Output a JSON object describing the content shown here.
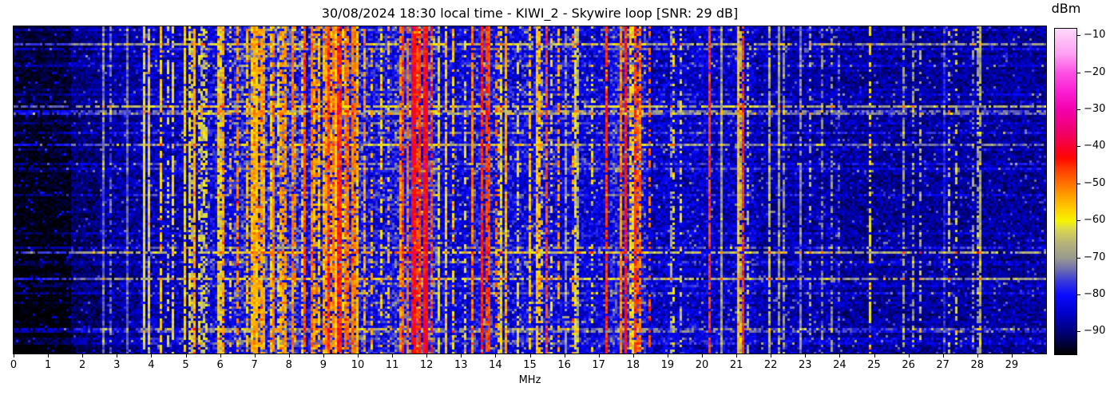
{
  "title": "30/08/2024 18:30 local time - KIWI_2 - Skywire loop [SNR: 29 dB]",
  "header": {
    "date": "30/08/2024",
    "time": "18:30 local time",
    "receiver": "KIWI_2",
    "antenna": "Skywire loop",
    "snr_db": 29
  },
  "chart_data": {
    "type": "heatmap",
    "subtype": "radio-spectrum-waterfall",
    "title": "30/08/2024 18:30 local time - KIWI_2 - Skywire loop [SNR: 29 dB]",
    "xlabel": "MHz",
    "x_range": [
      0,
      30
    ],
    "x_ticks": [
      0,
      1,
      2,
      3,
      4,
      5,
      6,
      7,
      8,
      9,
      10,
      11,
      12,
      13,
      14,
      15,
      16,
      17,
      18,
      19,
      20,
      21,
      22,
      23,
      24,
      25,
      26,
      27,
      28,
      29
    ],
    "grid": false,
    "legend_position": "none",
    "colorbar": {
      "label": "dBm",
      "ticks": [
        -10,
        -20,
        -30,
        -40,
        -50,
        -60,
        -70,
        -80,
        -90
      ],
      "vmin": -96,
      "vmax": -8
    },
    "colormap_stops": [
      [
        -96,
        "#000000"
      ],
      [
        -90,
        "#000078"
      ],
      [
        -85,
        "#0000c8"
      ],
      [
        -80,
        "#0a0aff"
      ],
      [
        -76,
        "#3c3cd8"
      ],
      [
        -73,
        "#6e6eae"
      ],
      [
        -70,
        "#99998f"
      ],
      [
        -66,
        "#b5b379"
      ],
      [
        -62,
        "#dcd94e"
      ],
      [
        -60,
        "#f5f500"
      ],
      [
        -57,
        "#ffd000"
      ],
      [
        -53,
        "#ff9e00"
      ],
      [
        -50,
        "#ff7400"
      ],
      [
        -46,
        "#ff3c00"
      ],
      [
        -43,
        "#ff0700"
      ],
      [
        -40,
        "#f8002e"
      ],
      [
        -36,
        "#f00069"
      ],
      [
        -30,
        "#f300ab"
      ],
      [
        -25,
        "#fb1fd4"
      ],
      [
        -20,
        "#fd4fe3"
      ],
      [
        -15,
        "#ff9ef2"
      ],
      [
        -10,
        "#ffc8f8"
      ],
      [
        -8,
        "#ffd9fa"
      ]
    ],
    "bands_format": [
      "from_mhz",
      "to_mhz",
      "noise_floor_dbm",
      "noise_spread_db",
      "channel_density",
      "channel_level_lo_dbm",
      "channel_level_hi_dbm"
    ],
    "signal_bands": [
      [
        0.0,
        1.7,
        -93,
        2.5,
        0.02,
        -80,
        -72
      ],
      [
        1.7,
        2.5,
        -89,
        4,
        0.05,
        -76,
        -66
      ],
      [
        2.5,
        3.7,
        -87,
        5,
        0.1,
        -73,
        -62
      ],
      [
        3.7,
        5.6,
        -85,
        6,
        0.2,
        -68,
        -56
      ],
      [
        5.6,
        6.4,
        -82,
        7,
        0.3,
        -66,
        -52
      ],
      [
        6.4,
        8.4,
        -79,
        8,
        0.45,
        -64,
        -50
      ],
      [
        8.4,
        9.0,
        -82,
        7,
        0.28,
        -62,
        -48
      ],
      [
        9.0,
        10.2,
        -80,
        8,
        0.5,
        -60,
        -46
      ],
      [
        10.2,
        11.1,
        -81,
        7,
        0.3,
        -64,
        -52
      ],
      [
        11.1,
        12.3,
        -79,
        8,
        0.5,
        -58,
        -44
      ],
      [
        12.3,
        13.3,
        -83,
        6,
        0.18,
        -66,
        -55
      ],
      [
        13.3,
        14.1,
        -81,
        7,
        0.28,
        -62,
        -50
      ],
      [
        14.1,
        15.9,
        -82,
        7,
        0.24,
        -66,
        -53
      ],
      [
        15.9,
        17.3,
        -83,
        6,
        0.22,
        -68,
        -54
      ],
      [
        17.3,
        18.4,
        -80,
        7,
        0.35,
        -62,
        -47
      ],
      [
        18.4,
        19.6,
        -85,
        6,
        0.1,
        -70,
        -58
      ],
      [
        19.6,
        21.6,
        -85,
        6,
        0.1,
        -70,
        -57
      ],
      [
        21.6,
        24.0,
        -87,
        5,
        0.06,
        -74,
        -62
      ],
      [
        24.0,
        30.0,
        -88,
        4.5,
        0.05,
        -76,
        -64
      ]
    ],
    "lines_format": [
      "freq_mhz",
      "half_width_mhz",
      "level_dbm",
      "duty_cycle"
    ],
    "signal_lines": [
      [
        2.62,
        0.02,
        -73,
        1.0
      ],
      [
        3.33,
        0.02,
        -74,
        1.0
      ],
      [
        3.8,
        0.03,
        -60,
        0.7
      ],
      [
        3.92,
        0.03,
        -58,
        0.55
      ],
      [
        4.25,
        0.03,
        -57,
        0.75
      ],
      [
        4.48,
        0.02,
        -62,
        0.4
      ],
      [
        4.65,
        0.03,
        -59,
        0.55
      ],
      [
        5.28,
        0.04,
        -55,
        0.85
      ],
      [
        5.42,
        0.02,
        -61,
        0.5
      ],
      [
        5.95,
        0.03,
        -57,
        0.6
      ],
      [
        6.07,
        0.04,
        -54,
        0.8
      ],
      [
        6.3,
        0.03,
        -58,
        0.5
      ],
      [
        6.52,
        0.04,
        -52,
        0.7
      ],
      [
        6.8,
        0.03,
        -56,
        0.6
      ],
      [
        7.05,
        0.08,
        -56,
        0.8
      ],
      [
        7.22,
        0.07,
        -54,
        0.8
      ],
      [
        7.45,
        0.03,
        -58,
        0.5
      ],
      [
        7.78,
        0.04,
        -55,
        0.6
      ],
      [
        8.1,
        0.04,
        -57,
        0.55
      ],
      [
        8.46,
        0.05,
        -48,
        0.85
      ],
      [
        9.02,
        0.03,
        -55,
        0.5
      ],
      [
        9.3,
        0.04,
        -52,
        0.7
      ],
      [
        9.45,
        0.06,
        -45,
        0.9
      ],
      [
        9.64,
        0.05,
        -50,
        0.8
      ],
      [
        9.88,
        0.05,
        -51,
        0.7
      ],
      [
        10.02,
        0.03,
        -55,
        0.6
      ],
      [
        10.65,
        0.03,
        -58,
        0.5
      ],
      [
        11.3,
        0.04,
        -50,
        0.75
      ],
      [
        11.62,
        0.07,
        -43,
        0.95
      ],
      [
        11.81,
        0.05,
        -46,
        0.9
      ],
      [
        11.96,
        0.07,
        -43,
        0.95
      ],
      [
        12.12,
        0.04,
        -52,
        0.6
      ],
      [
        12.75,
        0.04,
        -57,
        0.6
      ],
      [
        13.15,
        0.03,
        -60,
        0.4
      ],
      [
        13.6,
        0.06,
        -45,
        0.9
      ],
      [
        13.77,
        0.05,
        -47,
        0.85
      ],
      [
        14.3,
        0.03,
        -57,
        0.5
      ],
      [
        15.0,
        0.04,
        -57,
        0.65
      ],
      [
        15.25,
        0.05,
        -56,
        0.7
      ],
      [
        15.5,
        0.02,
        -47,
        0.85
      ],
      [
        16.05,
        0.05,
        -70,
        0.8
      ],
      [
        16.22,
        0.02,
        -54,
        0.3
      ],
      [
        16.8,
        0.03,
        -62,
        0.4
      ],
      [
        17.25,
        0.02,
        -46,
        0.85
      ],
      [
        17.65,
        0.05,
        -52,
        0.8
      ],
      [
        17.8,
        0.04,
        -44,
        0.95
      ],
      [
        18.05,
        0.03,
        -46,
        0.85
      ],
      [
        18.22,
        0.03,
        -54,
        0.6
      ],
      [
        18.5,
        0.02,
        -50,
        0.45
      ],
      [
        19.2,
        0.03,
        -62,
        0.4
      ],
      [
        20.25,
        0.02,
        -47,
        0.9
      ],
      [
        20.6,
        0.03,
        -70,
        1.0
      ],
      [
        21.05,
        0.02,
        -56,
        0.85
      ],
      [
        21.22,
        0.02,
        -46,
        0.9
      ],
      [
        22.25,
        0.02,
        -70,
        0.9
      ],
      [
        22.4,
        0.02,
        -72,
        0.8
      ],
      [
        24.85,
        0.02,
        -60,
        0.5
      ],
      [
        27.05,
        0.06,
        -79,
        1.0
      ],
      [
        27.15,
        0.02,
        -64,
        0.35
      ],
      [
        28.0,
        0.02,
        -70,
        0.5
      ]
    ],
    "row_streaks": {
      "prob": 0.28,
      "strong_prob": 0.05,
      "boost": [
        2,
        8
      ],
      "strong_boost": [
        9,
        20
      ]
    },
    "seed": 20240830
  }
}
